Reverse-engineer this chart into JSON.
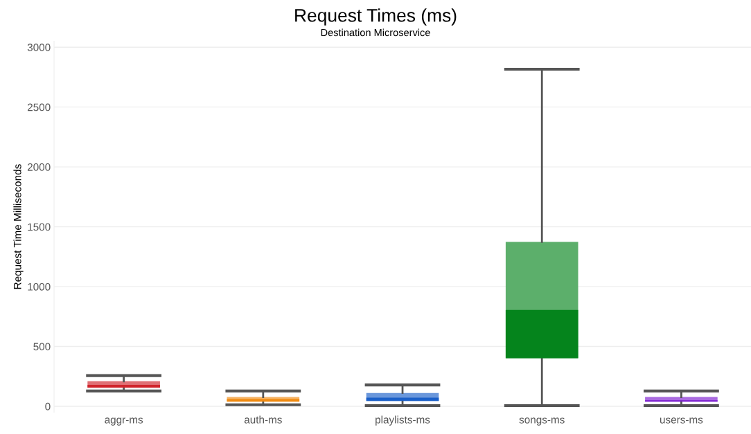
{
  "chart_data": {
    "type": "box",
    "title": "Request Times (ms)",
    "subtitle": "Destination Microservice",
    "ylabel": "Request Time Milliseconds",
    "categories": [
      "aggr-ms",
      "auth-ms",
      "playlists-ms",
      "songs-ms",
      "users-ms"
    ],
    "boxes": [
      {
        "low": 128,
        "q1": 156,
        "median": 179,
        "q3": 209,
        "high": 257
      },
      {
        "low": 13,
        "q1": 39,
        "median": 61,
        "q3": 78,
        "high": 128
      },
      {
        "low": 6,
        "q1": 45,
        "median": 73,
        "q3": 112,
        "high": 179
      },
      {
        "low": 6,
        "q1": 402,
        "median": 805,
        "q3": 1374,
        "high": 2816
      },
      {
        "low": 6,
        "q1": 39,
        "median": 50,
        "q3": 78,
        "high": 128
      }
    ],
    "colors": [
      "#d0232a",
      "#f08a10",
      "#1a5fc8",
      "#05841c",
      "#7a1ad0"
    ],
    "ylim": [
      -50,
      3050
    ],
    "yticks": [
      0,
      500,
      1000,
      1500,
      2000,
      2500,
      3000
    ],
    "grid": "y",
    "legend": false
  }
}
